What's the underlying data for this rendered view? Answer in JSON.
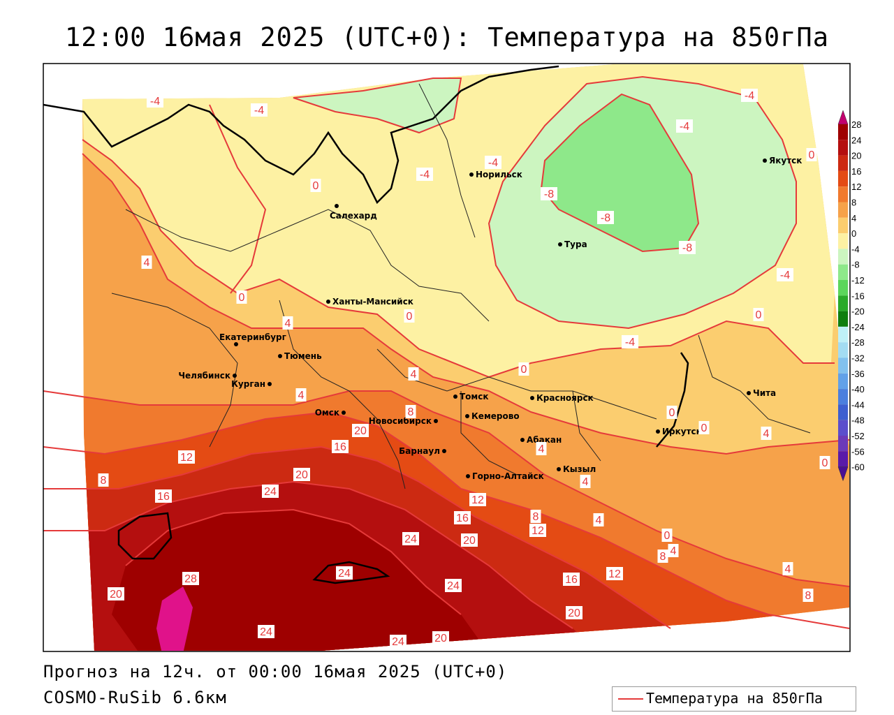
{
  "title": "12:00 16мая 2025 (UTC+0): Температура на 850гПа",
  "forecast_line": "Прогноз на 12ч. от 00:00 16мая 2025 (UTC+0)",
  "model_line": "COSMO-RuSib 6.6км",
  "legend": {
    "label": "Температура на 850гПа",
    "line_color": "#e53a3a"
  },
  "colorbar": {
    "ticks": [
      "28",
      "24",
      "20",
      "16",
      "12",
      "8",
      "4",
      "0",
      "-4",
      "-8",
      "-12",
      "-16",
      "-20",
      "-24",
      "-28",
      "-32",
      "-36",
      "-40",
      "-44",
      "-48",
      "-52",
      "-56",
      "-60"
    ],
    "colors": [
      "#c2006e",
      "#9e0000",
      "#b40f0f",
      "#cc2a12",
      "#e44b14",
      "#f07a2e",
      "#f6a24a",
      "#fbcd6f",
      "#fdf1a3",
      "#ccf5c0",
      "#8ee88a",
      "#5cd65c",
      "#2aaa2a",
      "#0f7e0f",
      "#bff0f7",
      "#a3dcf2",
      "#82c1ee",
      "#62a1e8",
      "#4b7fde",
      "#3d5fd0",
      "#5b4ecc",
      "#6c3ab8",
      "#5a1aa8",
      "#4a0e94"
    ]
  },
  "cities": [
    {
      "name": "Норильск"
    },
    {
      "name": "Якутск"
    },
    {
      "name": "Салехард"
    },
    {
      "name": "Тура"
    },
    {
      "name": "Ханты-Мансийск"
    },
    {
      "name": "Екатеринбург"
    },
    {
      "name": "Тюмень"
    },
    {
      "name": "Челябинск"
    },
    {
      "name": "Курган"
    },
    {
      "name": "Омск"
    },
    {
      "name": "Томск"
    },
    {
      "name": "Красноярск"
    },
    {
      "name": "Новосибирск"
    },
    {
      "name": "Кемерово"
    },
    {
      "name": "Абакан"
    },
    {
      "name": "Барнаул"
    },
    {
      "name": "Иркутск"
    },
    {
      "name": "Чита"
    },
    {
      "name": "Горно-Алтайск"
    },
    {
      "name": "Кызыл"
    }
  ],
  "contour_labels": [
    "-4",
    "-4",
    "-4",
    "-4",
    "-4",
    "-4",
    "-8",
    "-8",
    "-8",
    "-4",
    "-4",
    "0",
    "0",
    "0",
    "0",
    "0",
    "0",
    "0",
    "0",
    "0",
    "0",
    "4",
    "4",
    "4",
    "4",
    "4",
    "4",
    "4",
    "4",
    "4",
    "4",
    "8",
    "8",
    "8",
    "8",
    "8",
    "12",
    "12",
    "12",
    "12",
    "16",
    "16",
    "16",
    "16",
    "20",
    "20",
    "20",
    "20",
    "20",
    "20",
    "24",
    "24",
    "24",
    "24",
    "24",
    "24",
    "28"
  ]
}
